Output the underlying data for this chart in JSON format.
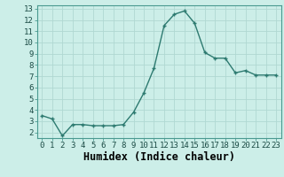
{
  "x": [
    0,
    1,
    2,
    3,
    4,
    5,
    6,
    7,
    8,
    9,
    10,
    11,
    12,
    13,
    14,
    15,
    16,
    17,
    18,
    19,
    20,
    21,
    22,
    23
  ],
  "y": [
    3.5,
    3.2,
    1.7,
    2.7,
    2.7,
    2.6,
    2.6,
    2.6,
    2.7,
    3.8,
    5.5,
    7.7,
    11.5,
    12.5,
    12.8,
    11.7,
    9.1,
    8.6,
    8.6,
    7.3,
    7.5,
    7.1,
    7.1,
    7.1
  ],
  "line_color": "#2d7a70",
  "marker_color": "#2d7a70",
  "bg_color": "#cceee8",
  "grid_color": "#b0d8d2",
  "xlabel": "Humidex (Indice chaleur)",
  "xlim": [
    -0.5,
    23.5
  ],
  "ylim": [
    1.5,
    13.3
  ],
  "yticks": [
    2,
    3,
    4,
    5,
    6,
    7,
    8,
    9,
    10,
    11,
    12,
    13
  ],
  "xticks": [
    0,
    1,
    2,
    3,
    4,
    5,
    6,
    7,
    8,
    9,
    10,
    11,
    12,
    13,
    14,
    15,
    16,
    17,
    18,
    19,
    20,
    21,
    22,
    23
  ],
  "tick_fontsize": 6.5,
  "xlabel_fontsize": 8.5,
  "linewidth": 1.0,
  "markersize": 2.5
}
